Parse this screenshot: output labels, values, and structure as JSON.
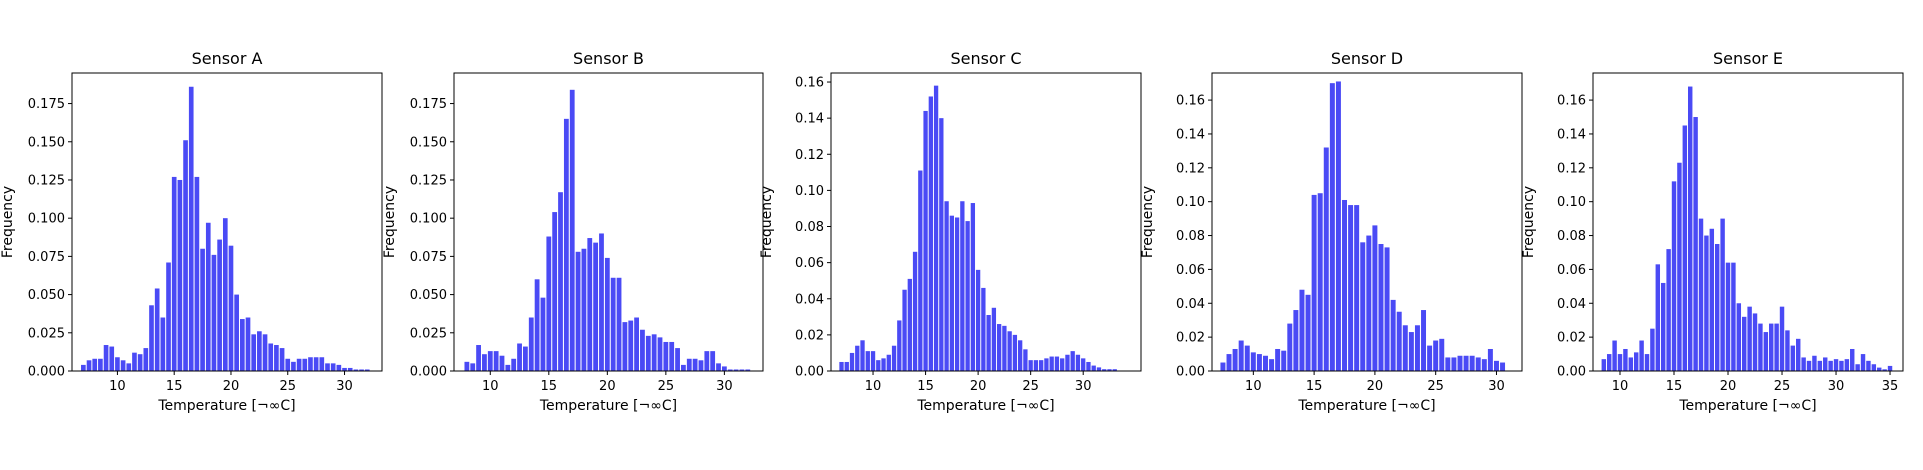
{
  "figure": {
    "bar_color": "#4a4af5"
  },
  "chart_data": [
    {
      "type": "bar",
      "title": "Sensor A",
      "xlabel": "Temperature [¬∞C]",
      "ylabel": "Frequency",
      "bin_width": 0.5,
      "xlim": [
        6.0,
        33.3
      ],
      "ylim": [
        0,
        0.195
      ],
      "xticks": [
        10,
        15,
        20,
        25,
        30
      ],
      "yticks": [
        0,
        0.025,
        0.05,
        0.075,
        0.1,
        0.125,
        0.15,
        0.175
      ],
      "ytick_labels": [
        "0.000",
        "0.025",
        "0.050",
        "0.075",
        "0.100",
        "0.125",
        "0.150",
        "0.175"
      ],
      "x": [
        7.0,
        7.5,
        8.0,
        8.5,
        9.0,
        9.5,
        10.0,
        10.5,
        11.0,
        11.5,
        12.0,
        12.5,
        13.0,
        13.5,
        14.0,
        14.5,
        15.0,
        15.5,
        16.0,
        16.5,
        17.0,
        17.5,
        18.0,
        18.5,
        19.0,
        19.5,
        20.0,
        20.5,
        21.0,
        21.5,
        22.0,
        22.5,
        23.0,
        23.5,
        24.0,
        24.5,
        25.0,
        25.5,
        26.0,
        26.5,
        27.0,
        27.5,
        28.0,
        28.5,
        29.0,
        29.5,
        30.0,
        30.5,
        31.0,
        31.5,
        32.0
      ],
      "values": [
        0.004,
        0.007,
        0.008,
        0.008,
        0.017,
        0.016,
        0.009,
        0.007,
        0.005,
        0.012,
        0.011,
        0.015,
        0.043,
        0.054,
        0.035,
        0.071,
        0.127,
        0.125,
        0.151,
        0.186,
        0.127,
        0.08,
        0.097,
        0.076,
        0.086,
        0.1,
        0.082,
        0.05,
        0.034,
        0.035,
        0.024,
        0.026,
        0.024,
        0.018,
        0.017,
        0.015,
        0.008,
        0.006,
        0.008,
        0.008,
        0.009,
        0.009,
        0.009,
        0.005,
        0.005,
        0.004,
        0.002,
        0.002,
        0.001,
        0.001,
        0.001
      ]
    },
    {
      "type": "bar",
      "title": "Sensor B",
      "xlabel": "Temperature [¬∞C]",
      "ylabel": "Frequency",
      "bin_width": 0.5,
      "xlim": [
        6.9,
        33.3
      ],
      "ylim": [
        0,
        0.195
      ],
      "xticks": [
        10,
        15,
        20,
        25,
        30
      ],
      "yticks": [
        0,
        0.025,
        0.05,
        0.075,
        0.1,
        0.125,
        0.15,
        0.175
      ],
      "ytick_labels": [
        "0.000",
        "0.025",
        "0.050",
        "0.075",
        "0.100",
        "0.125",
        "0.150",
        "0.175"
      ],
      "x": [
        8.0,
        8.5,
        9.0,
        9.5,
        10.0,
        10.5,
        11.0,
        11.5,
        12.0,
        12.5,
        13.0,
        13.5,
        14.0,
        14.5,
        15.0,
        15.5,
        16.0,
        16.5,
        17.0,
        17.5,
        18.0,
        18.5,
        19.0,
        19.5,
        20.0,
        20.5,
        21.0,
        21.5,
        22.0,
        22.5,
        23.0,
        23.5,
        24.0,
        24.5,
        25.0,
        25.5,
        26.0,
        26.5,
        27.0,
        27.5,
        28.0,
        28.5,
        29.0,
        29.5,
        30.0,
        30.5,
        31.0,
        31.5,
        32.0
      ],
      "values": [
        0.006,
        0.005,
        0.017,
        0.011,
        0.013,
        0.013,
        0.01,
        0.004,
        0.008,
        0.018,
        0.016,
        0.035,
        0.06,
        0.048,
        0.088,
        0.104,
        0.117,
        0.165,
        0.184,
        0.078,
        0.08,
        0.087,
        0.084,
        0.09,
        0.074,
        0.061,
        0.061,
        0.032,
        0.033,
        0.035,
        0.027,
        0.023,
        0.024,
        0.022,
        0.019,
        0.019,
        0.015,
        0.004,
        0.008,
        0.008,
        0.007,
        0.013,
        0.013,
        0.005,
        0.003,
        0.001,
        0.001,
        0.001,
        0.001
      ]
    },
    {
      "type": "bar",
      "title": "Sensor C",
      "xlabel": "Temperature [¬∞C]",
      "ylabel": "Frequency",
      "bin_width": 0.5,
      "xlim": [
        6.0,
        35.5
      ],
      "ylim": [
        0,
        0.165
      ],
      "xticks": [
        10,
        15,
        20,
        25,
        30
      ],
      "yticks": [
        0,
        0.02,
        0.04,
        0.06,
        0.08,
        0.1,
        0.12,
        0.14,
        0.16
      ],
      "ytick_labels": [
        "0.00",
        "0.02",
        "0.04",
        "0.06",
        "0.08",
        "0.10",
        "0.12",
        "0.14",
        "0.16"
      ],
      "x": [
        7.0,
        7.5,
        8.0,
        8.5,
        9.0,
        9.5,
        10.0,
        10.5,
        11.0,
        11.5,
        12.0,
        12.5,
        13.0,
        13.5,
        14.0,
        14.5,
        15.0,
        15.5,
        16.0,
        16.5,
        17.0,
        17.5,
        18.0,
        18.5,
        19.0,
        19.5,
        20.0,
        20.5,
        21.0,
        21.5,
        22.0,
        22.5,
        23.0,
        23.5,
        24.0,
        24.5,
        25.0,
        25.5,
        26.0,
        26.5,
        27.0,
        27.5,
        28.0,
        28.5,
        29.0,
        29.5,
        30.0,
        30.5,
        31.0,
        31.5,
        32.0,
        32.5,
        33.0,
        33.5
      ],
      "values": [
        0.005,
        0.005,
        0.01,
        0.014,
        0.017,
        0.011,
        0.011,
        0.006,
        0.007,
        0.009,
        0.014,
        0.028,
        0.045,
        0.051,
        0.066,
        0.111,
        0.144,
        0.152,
        0.158,
        0.14,
        0.094,
        0.086,
        0.085,
        0.094,
        0.083,
        0.093,
        0.056,
        0.046,
        0.031,
        0.035,
        0.026,
        0.025,
        0.022,
        0.02,
        0.017,
        0.012,
        0.006,
        0.006,
        0.006,
        0.007,
        0.008,
        0.008,
        0.007,
        0.009,
        0.011,
        0.009,
        0.007,
        0.005,
        0.003,
        0.002,
        0.001,
        0.001,
        0.001,
        0.0
      ]
    },
    {
      "type": "bar",
      "title": "Sensor D",
      "xlabel": "Temperature [¬∞C]",
      "ylabel": "Frequency",
      "bin_width": 0.5,
      "xlim": [
        6.6,
        32.1
      ],
      "ylim": [
        0,
        0.176
      ],
      "xticks": [
        10,
        15,
        20,
        25,
        30
      ],
      "yticks": [
        0,
        0.02,
        0.04,
        0.06,
        0.08,
        0.1,
        0.12,
        0.14,
        0.16
      ],
      "ytick_labels": [
        "0.00",
        "0.02",
        "0.04",
        "0.06",
        "0.08",
        "0.10",
        "0.12",
        "0.14",
        "0.16"
      ],
      "x": [
        7.5,
        8.0,
        8.5,
        9.0,
        9.5,
        10.0,
        10.5,
        11.0,
        11.5,
        12.0,
        12.5,
        13.0,
        13.5,
        14.0,
        14.5,
        15.0,
        15.5,
        16.0,
        16.5,
        17.0,
        17.5,
        18.0,
        18.5,
        19.0,
        19.5,
        20.0,
        20.5,
        21.0,
        21.5,
        22.0,
        22.5,
        23.0,
        23.5,
        24.0,
        24.5,
        25.0,
        25.5,
        26.0,
        26.5,
        27.0,
        27.5,
        28.0,
        28.5,
        29.0,
        29.5,
        30.0,
        30.5,
        31.0
      ],
      "values": [
        0.005,
        0.01,
        0.013,
        0.018,
        0.015,
        0.011,
        0.01,
        0.009,
        0.007,
        0.013,
        0.012,
        0.028,
        0.036,
        0.048,
        0.045,
        0.104,
        0.105,
        0.132,
        0.17,
        0.171,
        0.101,
        0.098,
        0.098,
        0.076,
        0.08,
        0.086,
        0.075,
        0.073,
        0.042,
        0.035,
        0.027,
        0.023,
        0.027,
        0.036,
        0.015,
        0.018,
        0.019,
        0.008,
        0.008,
        0.009,
        0.009,
        0.009,
        0.008,
        0.007,
        0.013,
        0.006,
        0.005,
        0.0
      ]
    },
    {
      "type": "bar",
      "title": "Sensor E",
      "xlabel": "Temperature [¬∞C]",
      "ylabel": "Frequency",
      "bin_width": 0.5,
      "xlim": [
        7.5,
        36.2
      ],
      "ylim": [
        0,
        0.176
      ],
      "xticks": [
        10,
        15,
        20,
        25,
        30,
        35
      ],
      "yticks": [
        0,
        0.02,
        0.04,
        0.06,
        0.08,
        0.1,
        0.12,
        0.14,
        0.16
      ],
      "ytick_labels": [
        "0.00",
        "0.02",
        "0.04",
        "0.06",
        "0.08",
        "0.10",
        "0.12",
        "0.14",
        "0.16"
      ],
      "x": [
        8.5,
        9.0,
        9.5,
        10.0,
        10.5,
        11.0,
        11.5,
        12.0,
        12.5,
        13.0,
        13.5,
        14.0,
        14.5,
        15.0,
        15.5,
        16.0,
        16.5,
        17.0,
        17.5,
        18.0,
        18.5,
        19.0,
        19.5,
        20.0,
        20.5,
        21.0,
        21.5,
        22.0,
        22.5,
        23.0,
        23.5,
        24.0,
        24.5,
        25.0,
        25.5,
        26.0,
        26.5,
        27.0,
        27.5,
        28.0,
        28.5,
        29.0,
        29.5,
        30.0,
        30.5,
        31.0,
        31.5,
        32.0,
        32.5,
        33.0,
        33.5,
        34.0,
        34.5,
        35.0
      ],
      "values": [
        0.007,
        0.01,
        0.018,
        0.01,
        0.013,
        0.008,
        0.011,
        0.018,
        0.01,
        0.025,
        0.063,
        0.052,
        0.072,
        0.112,
        0.123,
        0.145,
        0.168,
        0.15,
        0.09,
        0.08,
        0.084,
        0.075,
        0.09,
        0.064,
        0.064,
        0.04,
        0.032,
        0.038,
        0.034,
        0.028,
        0.023,
        0.028,
        0.028,
        0.038,
        0.024,
        0.015,
        0.019,
        0.008,
        0.006,
        0.009,
        0.006,
        0.008,
        0.006,
        0.007,
        0.006,
        0.007,
        0.013,
        0.004,
        0.01,
        0.006,
        0.004,
        0.002,
        0.001,
        0.003
      ]
    }
  ]
}
